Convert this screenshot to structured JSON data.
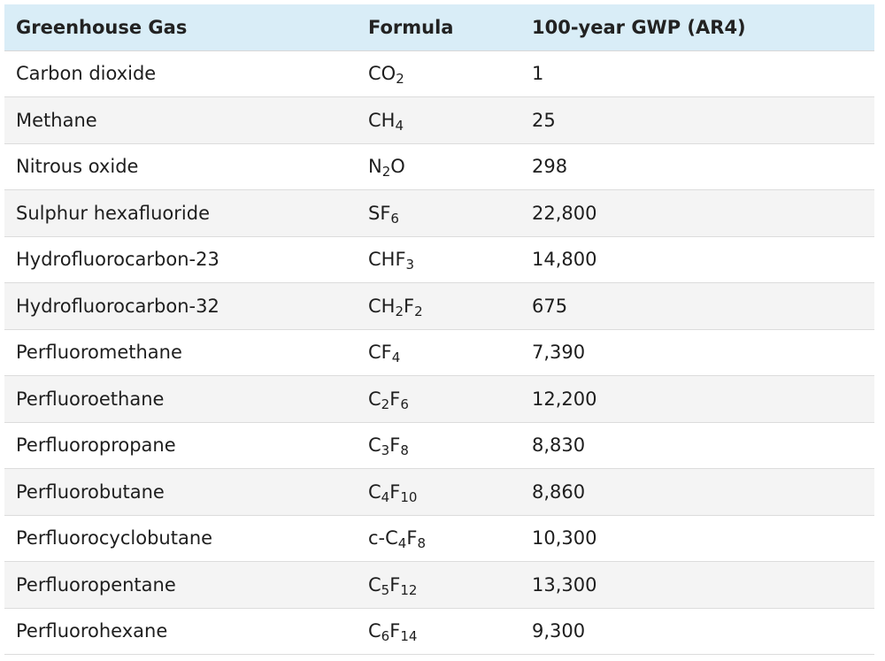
{
  "table": {
    "headers": [
      "Greenhouse Gas",
      "Formula",
      "100-year GWP (AR4)"
    ],
    "rows": [
      {
        "gas": "Carbon dioxide",
        "formula": [
          [
            "CO",
            ""
          ],
          [
            "2",
            "sub"
          ]
        ],
        "gwp": "1"
      },
      {
        "gas": "Methane",
        "formula": [
          [
            "CH",
            ""
          ],
          [
            "4",
            "sub"
          ]
        ],
        "gwp": "25"
      },
      {
        "gas": "Nitrous oxide",
        "formula": [
          [
            "N",
            ""
          ],
          [
            "2",
            "sub"
          ],
          [
            "O",
            ""
          ]
        ],
        "gwp": "298"
      },
      {
        "gas": "Sulphur hexafluoride",
        "formula": [
          [
            "SF",
            ""
          ],
          [
            "6",
            "sub"
          ]
        ],
        "gwp": "22,800"
      },
      {
        "gas": "Hydrofluorocarbon-23",
        "formula": [
          [
            "CHF",
            ""
          ],
          [
            "3",
            "sub"
          ]
        ],
        "gwp": "14,800"
      },
      {
        "gas": "Hydrofluorocarbon-32",
        "formula": [
          [
            "CH",
            ""
          ],
          [
            "2",
            "sub"
          ],
          [
            "F",
            ""
          ],
          [
            "2",
            "sub"
          ]
        ],
        "gwp": "675"
      },
      {
        "gas": "Perfluoromethane",
        "formula": [
          [
            "CF",
            ""
          ],
          [
            "4",
            "sub"
          ]
        ],
        "gwp": "7,390"
      },
      {
        "gas": "Perfluoroethane",
        "formula": [
          [
            "C",
            ""
          ],
          [
            "2",
            "sub"
          ],
          [
            "F",
            ""
          ],
          [
            "6",
            "sub"
          ]
        ],
        "gwp": "12,200"
      },
      {
        "gas": "Perfluoropropane",
        "formula": [
          [
            "C",
            ""
          ],
          [
            "3",
            "sub"
          ],
          [
            "F",
            ""
          ],
          [
            "8",
            "sub"
          ]
        ],
        "gwp": "8,830"
      },
      {
        "gas": "Perfluorobutane",
        "formula": [
          [
            "C",
            ""
          ],
          [
            "4",
            "sub"
          ],
          [
            "F",
            ""
          ],
          [
            "10",
            "sub"
          ]
        ],
        "gwp": "8,860"
      },
      {
        "gas": "Perfluorocyclobutane",
        "formula": [
          [
            "c-C",
            ""
          ],
          [
            "4",
            "sub"
          ],
          [
            "F",
            ""
          ],
          [
            "8",
            "sub"
          ]
        ],
        "gwp": "10,300"
      },
      {
        "gas": "Perfluoropentane",
        "formula": [
          [
            "C",
            ""
          ],
          [
            "5",
            "sub"
          ],
          [
            "F",
            ""
          ],
          [
            "12",
            "sub"
          ]
        ],
        "gwp": "13,300"
      },
      {
        "gas": "Perfluorohexane",
        "formula": [
          [
            "C",
            ""
          ],
          [
            "6",
            "sub"
          ],
          [
            "F",
            ""
          ],
          [
            "14",
            "sub"
          ]
        ],
        "gwp": "9,300"
      }
    ]
  },
  "colors": {
    "header_bg": "#d9edf7",
    "stripe_bg": "#f4f4f4",
    "border": "#dcdcdc"
  }
}
